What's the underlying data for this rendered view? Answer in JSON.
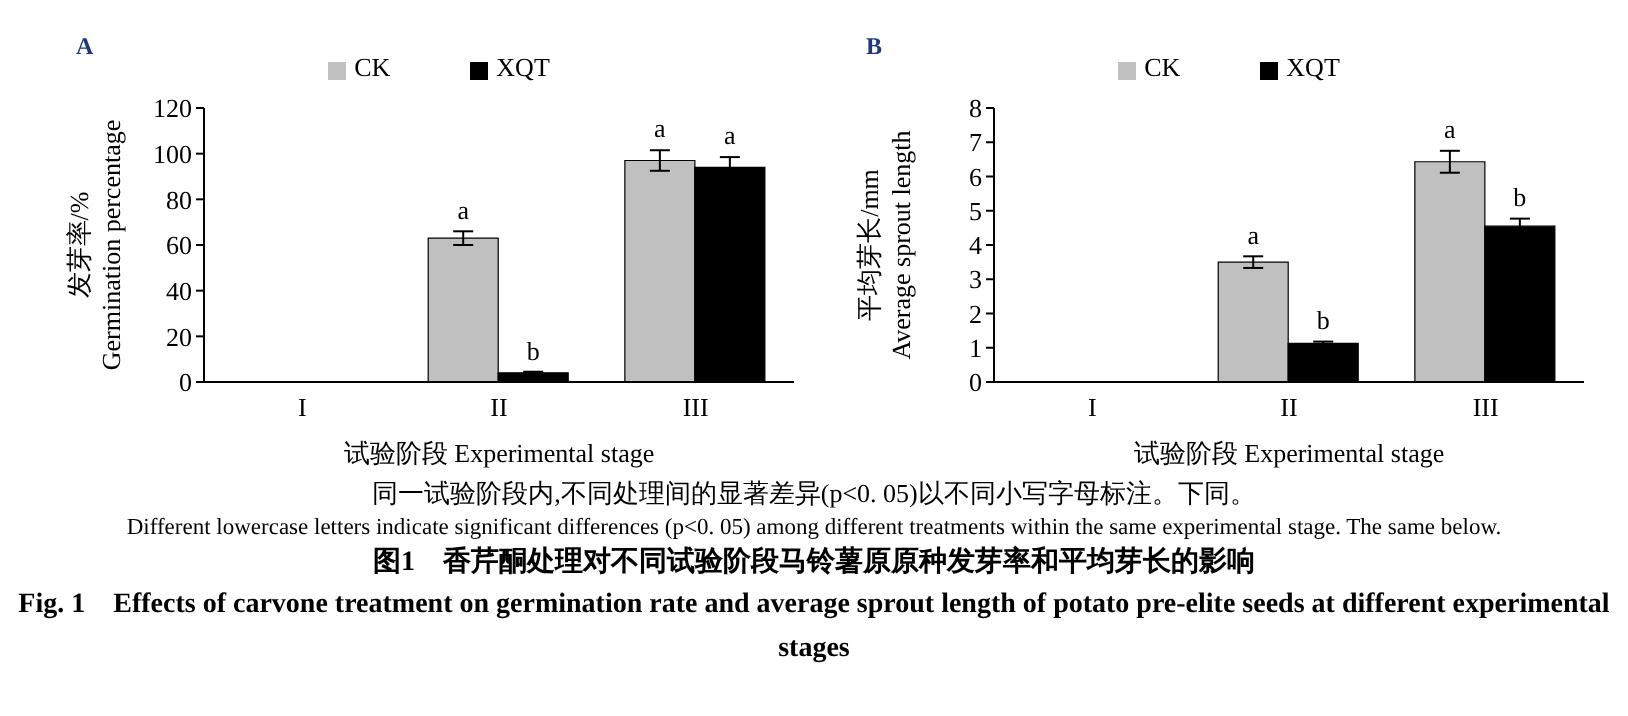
{
  "chart_data": [
    {
      "type": "bar",
      "title": "A",
      "xlabel": "试验阶段 Experimental stage",
      "ylabel": "发芽率/%\nGermination percentage",
      "categories": [
        "I",
        "II",
        "III"
      ],
      "ylim": [
        0,
        120
      ],
      "yticks": [
        0,
        20,
        40,
        60,
        80,
        100,
        120
      ],
      "grid": false,
      "legend": "top",
      "series": [
        {
          "name": "CK",
          "color": "#c0c0c0",
          "values": [
            0,
            63,
            97
          ],
          "errors": [
            null,
            3,
            4.5
          ],
          "value_labels": [
            null,
            "a",
            "a"
          ]
        },
        {
          "name": "XQT",
          "color": "#000000",
          "values": [
            0,
            4,
            94
          ],
          "errors": [
            null,
            0.5,
            4.5
          ],
          "value_labels": [
            null,
            "b",
            "a"
          ]
        }
      ],
      "annotations": [
        "同一试验阶段内,不同处理间的显著差异(p<0. 05)以不同小写字母标注。下同。",
        "Different lowercase letters indicate significant differences (p<0. 05) among different treatments within the same experimental stage. The same below.",
        "图1　香芹酮处理对不同试验阶段马铃薯原原种发芽率和平均芽长的影响",
        "Fig. 1　Effects of carvone treatment on germination rate and average sprout length of potato pre-elite seeds at different experimental stages"
      ]
    },
    {
      "type": "bar",
      "title": "B",
      "xlabel": "试验阶段 Experimental stage",
      "ylabel": "平均芽长/mm\nAverage sprout length",
      "categories": [
        "I",
        "II",
        "III"
      ],
      "ylim": [
        0,
        8
      ],
      "yticks": [
        0,
        1,
        2,
        3,
        4,
        5,
        6,
        7,
        8
      ],
      "grid": false,
      "legend": "top",
      "series": [
        {
          "name": "CK",
          "color": "#c0c0c0",
          "values": [
            0,
            3.5,
            6.43
          ],
          "errors": [
            null,
            0.17,
            0.32
          ],
          "value_labels": [
            null,
            "a",
            "a"
          ]
        },
        {
          "name": "XQT",
          "color": "#000000",
          "values": [
            0,
            1.13,
            4.55
          ],
          "errors": [
            null,
            0.05,
            0.22
          ],
          "value_labels": [
            null,
            "b",
            "b"
          ]
        }
      ]
    }
  ]
}
